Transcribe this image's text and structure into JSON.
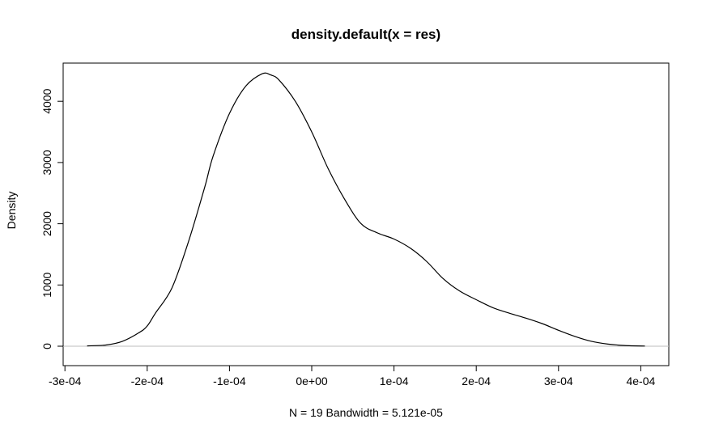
{
  "chart_data": {
    "type": "line",
    "title": "density.default(x = res)",
    "xlabel": "N = 19   Bandwidth = 5.121e-05",
    "ylabel": "Density",
    "xlim": [
      -0.0003,
      0.0004
    ],
    "ylim": [
      0,
      4400
    ],
    "x_ticks": [
      -0.0003,
      -0.0002,
      -0.0001,
      0.0,
      0.0001,
      0.0002,
      0.0003,
      0.0004
    ],
    "x_tick_labels": [
      "-3e-04",
      "-2e-04",
      "-1e-04",
      "0e+00",
      "1e-04",
      "2e-04",
      "3e-04",
      "4e-04"
    ],
    "y_ticks": [
      0,
      1000,
      2000,
      3000,
      4000
    ],
    "y_tick_labels": [
      "0",
      "1000",
      "2000",
      "3000",
      "4000"
    ],
    "baseline": 0,
    "baseline_color": "#bebebe",
    "line_color": "#000000",
    "grid": false,
    "series": [
      {
        "x": [
          -0.000273,
          -0.00025,
          -0.00023,
          -0.00021,
          -0.0002,
          -0.00019,
          -0.00017,
          -0.00015,
          -0.00013,
          -0.00012,
          -0.0001,
          -8e-05,
          -6e-05,
          -5e-05,
          -4e-05,
          -2e-05,
          0.0,
          2e-05,
          4e-05,
          6e-05,
          8e-05,
          0.0001,
          0.00012,
          0.00014,
          0.00016,
          0.00018,
          0.0002,
          0.00022,
          0.00024,
          0.00026,
          0.00028,
          0.0003,
          0.00032,
          0.00034,
          0.00036,
          0.00038,
          0.000405
        ],
        "y": [
          5,
          20,
          80,
          220,
          330,
          540,
          950,
          1700,
          2600,
          3100,
          3800,
          4250,
          4450,
          4430,
          4350,
          4000,
          3500,
          2900,
          2400,
          2000,
          1850,
          1750,
          1600,
          1380,
          1100,
          900,
          760,
          630,
          540,
          460,
          370,
          260,
          160,
          80,
          35,
          12,
          2
        ]
      }
    ]
  }
}
